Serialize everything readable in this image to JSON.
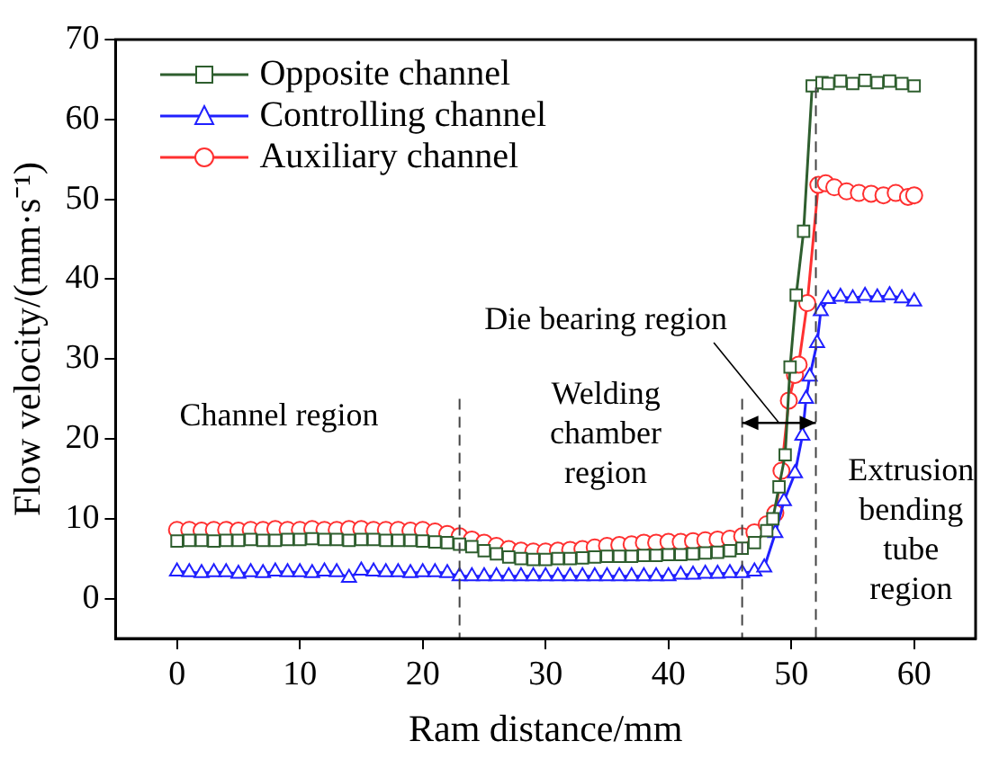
{
  "chart_data": {
    "type": "line",
    "xlabel": "Ram distance/mm",
    "ylabel": "Flow velocity/(mm·s⁻¹)",
    "xlim": [
      -5,
      65
    ],
    "ylim": [
      -5,
      70
    ],
    "xticks": [
      0,
      10,
      20,
      30,
      40,
      50,
      60
    ],
    "yticks": [
      0,
      10,
      20,
      30,
      40,
      50,
      60,
      70
    ],
    "grid": false,
    "legend": "top left",
    "line_style": "solid",
    "series": [
      {
        "name": "Opposite channel",
        "color": "#2e5e2e",
        "marker": "square",
        "x": [
          0,
          1,
          2,
          3,
          4,
          5,
          6,
          7,
          8,
          9,
          10,
          11,
          12,
          13,
          14,
          15,
          16,
          17,
          18,
          19,
          20,
          21,
          22,
          23,
          24,
          25,
          26,
          27,
          28,
          29,
          30,
          31,
          32,
          33,
          34,
          35,
          36,
          37,
          38,
          39,
          40,
          41,
          42,
          43,
          44,
          45,
          46,
          47,
          48,
          48.5,
          49,
          49.5,
          49.9,
          50.4,
          51,
          51.7,
          52.5,
          53,
          54,
          55,
          56,
          57,
          58,
          59,
          60
        ],
        "values": [
          7.2,
          7.3,
          7.3,
          7.2,
          7.3,
          7.3,
          7.4,
          7.3,
          7.3,
          7.4,
          7.4,
          7.5,
          7.4,
          7.4,
          7.3,
          7.4,
          7.4,
          7.3,
          7.3,
          7.3,
          7.2,
          7.1,
          7.0,
          6.8,
          6.5,
          6.0,
          5.6,
          5.2,
          5.0,
          4.9,
          4.9,
          5.0,
          5.0,
          5.1,
          5.2,
          5.3,
          5.3,
          5.3,
          5.4,
          5.4,
          5.5,
          5.5,
          5.6,
          5.7,
          5.8,
          6.0,
          6.3,
          7.0,
          8.5,
          10,
          14,
          18,
          29,
          38,
          46,
          64.2,
          64.6,
          64.5,
          64.8,
          64.5,
          64.9,
          64.6,
          64.8,
          64.5,
          64.2
        ]
      },
      {
        "name": "Controlling channel",
        "color": "#2020ff",
        "marker": "triangle",
        "x": [
          0,
          1,
          2,
          3,
          4,
          5,
          6,
          7,
          8,
          9,
          10,
          11,
          12,
          13,
          14,
          15,
          16,
          17,
          18,
          19,
          20,
          21,
          22,
          23,
          24,
          25,
          26,
          27,
          28,
          29,
          30,
          31,
          32,
          33,
          34,
          35,
          36,
          37,
          38,
          39,
          40,
          41,
          42,
          43,
          44,
          45,
          46,
          47,
          47.8,
          48.7,
          49.4,
          50.3,
          50.9,
          51.2,
          51.5,
          52.1,
          52.4,
          53,
          54,
          55,
          56,
          57,
          58,
          59,
          60
        ],
        "values": [
          3.4,
          3.3,
          3.2,
          3.3,
          3.3,
          3.1,
          3.3,
          3.2,
          3.4,
          3.3,
          3.3,
          3.2,
          3.4,
          3.3,
          2.6,
          3.5,
          3.4,
          3.3,
          3.3,
          3.2,
          3.3,
          3.3,
          3.2,
          2.8,
          2.8,
          2.8,
          2.8,
          2.8,
          2.8,
          2.8,
          2.8,
          2.8,
          2.8,
          2.8,
          2.8,
          2.8,
          2.8,
          2.8,
          2.8,
          2.8,
          2.8,
          3.0,
          3.0,
          3.1,
          3.1,
          3.2,
          3.2,
          3.4,
          3.9,
          8.2,
          12.2,
          15.7,
          20.4,
          25,
          27.8,
          32,
          36,
          37.5,
          37.8,
          37.6,
          37.9,
          37.7,
          38,
          37.6,
          37.2
        ]
      },
      {
        "name": "Auxiliary channel",
        "color": "#ff3030",
        "marker": "circle",
        "x": [
          0,
          1,
          2,
          3,
          4,
          5,
          6,
          7,
          8,
          9,
          10,
          11,
          12,
          13,
          14,
          15,
          16,
          17,
          18,
          19,
          20,
          21,
          22,
          23,
          24,
          25,
          26,
          27,
          28,
          29,
          30,
          31,
          32,
          33,
          34,
          35,
          36,
          37,
          38,
          39,
          40,
          41,
          42,
          43,
          44,
          45,
          46,
          47,
          48,
          48.7,
          49.2,
          49.8,
          50.3,
          50.6,
          51.3,
          52.2,
          52.8,
          53.5,
          54.5,
          55.5,
          56.5,
          57.5,
          58.5,
          59.5,
          60
        ],
        "values": [
          8.6,
          8.6,
          8.5,
          8.6,
          8.6,
          8.5,
          8.6,
          8.6,
          8.7,
          8.6,
          8.6,
          8.7,
          8.6,
          8.6,
          8.7,
          8.7,
          8.6,
          8.6,
          8.6,
          8.5,
          8.6,
          8.4,
          8.1,
          7.8,
          7.4,
          7.0,
          6.6,
          6.2,
          6.0,
          5.9,
          5.9,
          6.0,
          6.1,
          6.2,
          6.4,
          6.6,
          6.7,
          6.8,
          7.0,
          7.0,
          7.1,
          7.1,
          7.2,
          7.3,
          7.4,
          7.5,
          7.8,
          8.3,
          9.3,
          10.7,
          16,
          24.8,
          28,
          29.3,
          37,
          51.8,
          52,
          51.5,
          51,
          50.8,
          50.7,
          50.5,
          50.8,
          50.3,
          50.5
        ]
      }
    ],
    "ref_lines": [
      {
        "axis": "x",
        "value": 23,
        "line_style": "dashed"
      },
      {
        "axis": "x",
        "value": 46,
        "line_style": "dashed"
      },
      {
        "axis": "x",
        "value": 52,
        "line_style": "dashed"
      }
    ],
    "annotations": [
      "Channel region",
      "Welding\nchamber\nregion",
      {
        "text": "Die bearing region",
        "x": 49,
        "y": 22
      },
      "Extrusion\nbending\ntube\nregion"
    ]
  }
}
